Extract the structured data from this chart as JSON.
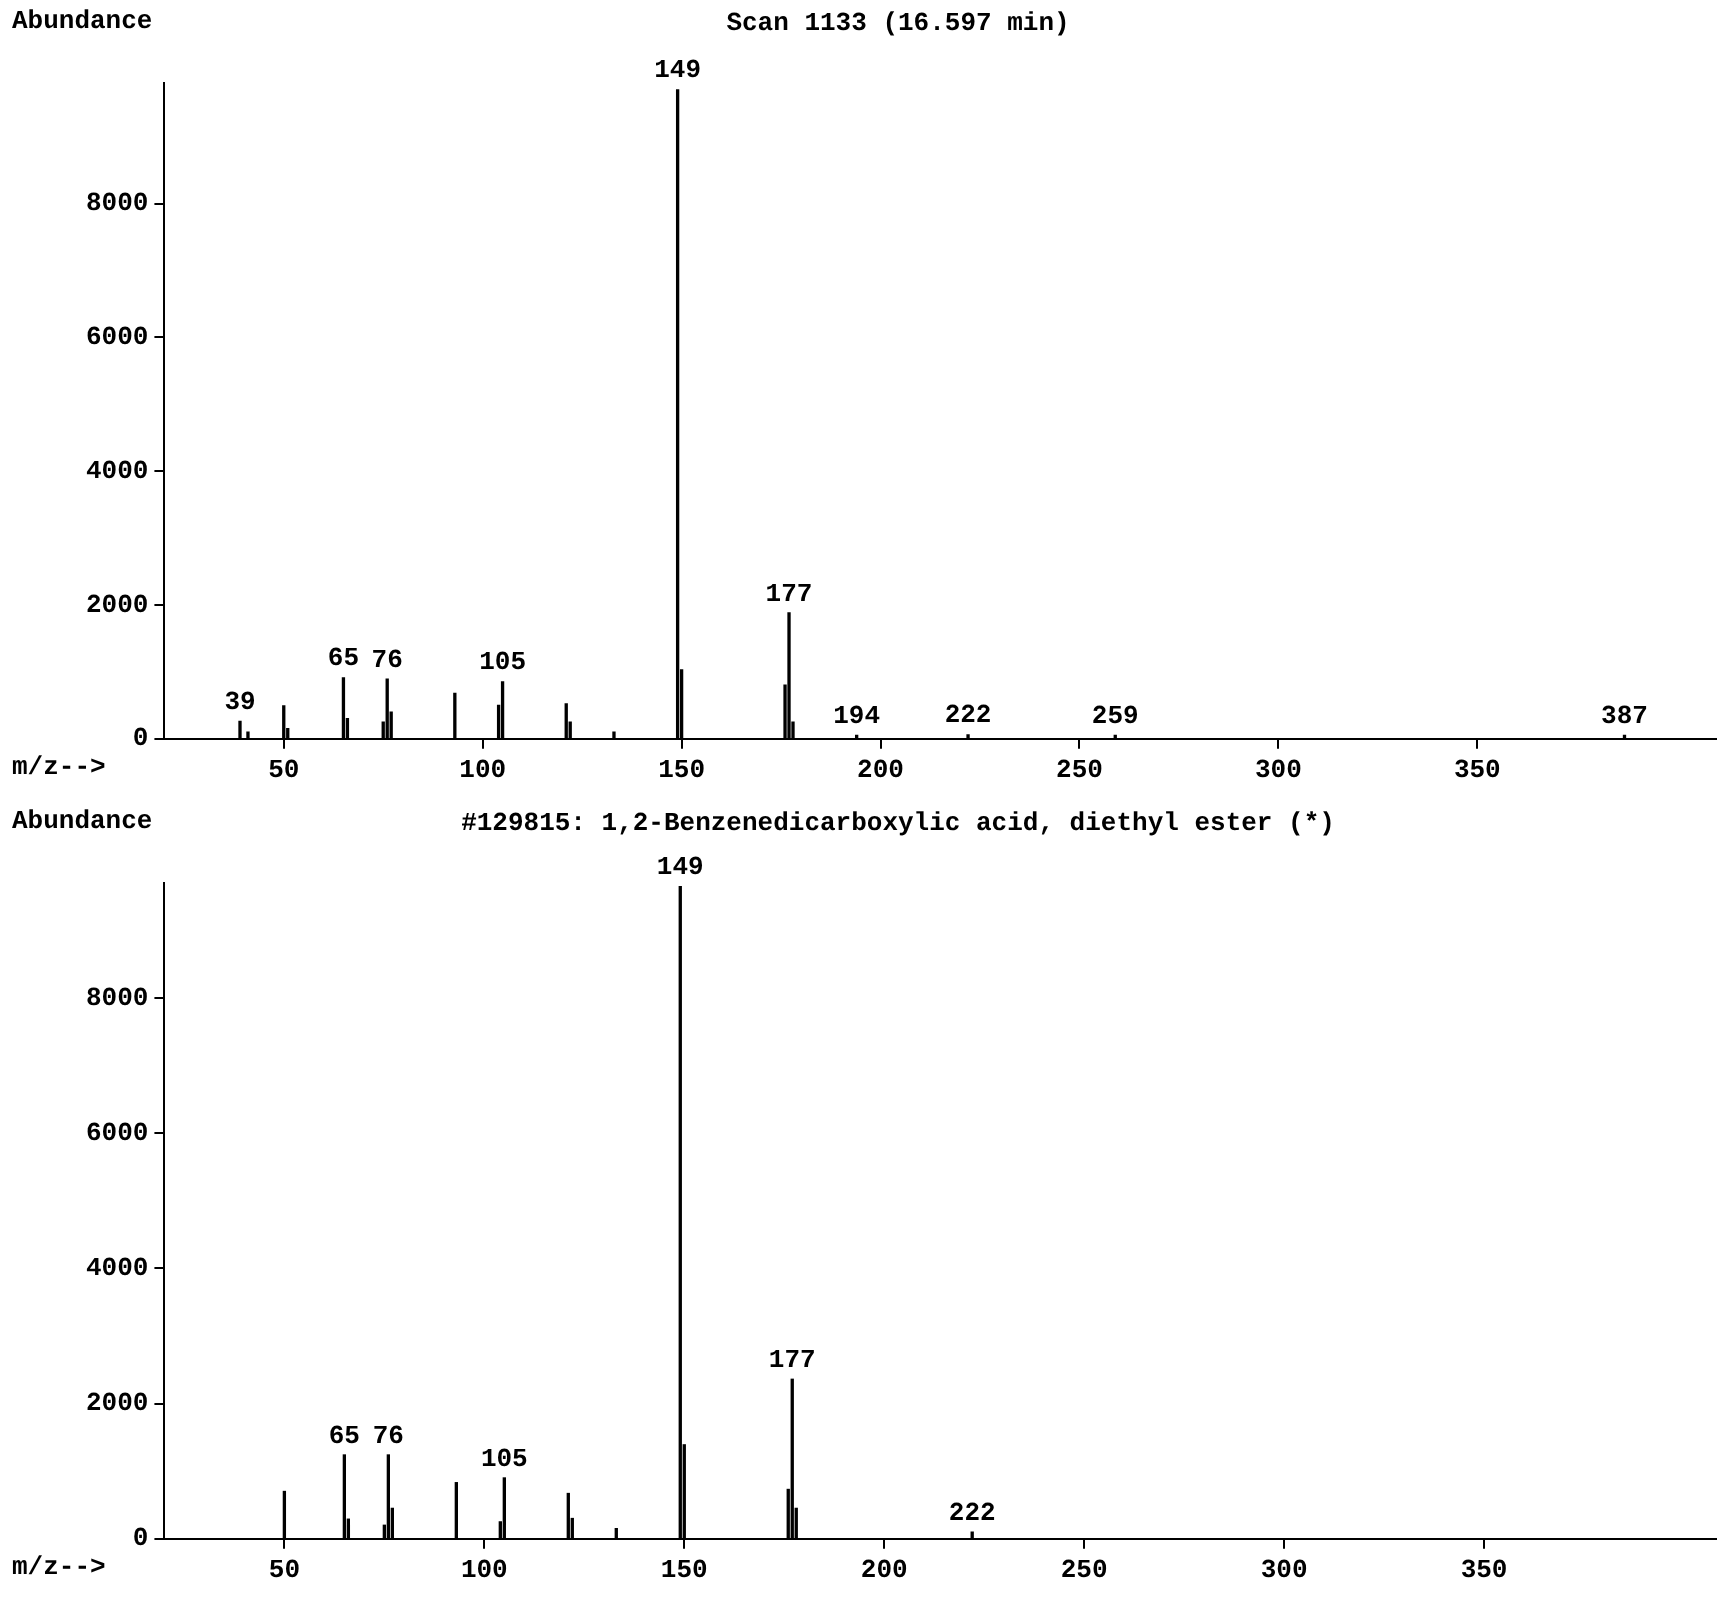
{
  "chart_data": [
    {
      "type": "bar",
      "title": "Scan 1133 (16.597 min)",
      "ylabel": "Abundance",
      "xlabel": "m/z-->",
      "x": [
        39,
        41,
        50,
        51,
        65,
        66,
        75,
        76,
        77,
        93,
        104,
        105,
        121,
        122,
        133,
        149,
        150,
        176,
        177,
        178,
        194,
        222,
        259,
        387
      ],
      "values": [
        260,
        100,
        490,
        150,
        910,
        300,
        250,
        890,
        400,
        680,
        500,
        850,
        520,
        250,
        100,
        9700,
        1030,
        800,
        1880,
        250,
        50,
        60,
        50,
        50
      ],
      "color": "#000000",
      "xlim": [
        20,
        410
      ],
      "xticks": [
        50,
        100,
        150,
        200,
        250,
        300,
        350
      ],
      "ylim": [
        0,
        9800
      ],
      "yticks": [
        0,
        2000,
        4000,
        6000,
        8000
      ],
      "grid": false,
      "legend": false,
      "annotations": [
        {
          "text": "39",
          "x": 39,
          "y": 260
        },
        {
          "text": "65",
          "x": 65,
          "y": 910
        },
        {
          "text": "76",
          "x": 76,
          "y": 890
        },
        {
          "text": "105",
          "x": 105,
          "y": 850
        },
        {
          "text": "149",
          "x": 149,
          "y": 9700
        },
        {
          "text": "177",
          "x": 177,
          "y": 1880
        },
        {
          "text": "194",
          "x": 194,
          "y": 50
        },
        {
          "text": "222",
          "x": 222,
          "y": 60
        },
        {
          "text": "259",
          "x": 259,
          "y": 50
        },
        {
          "text": "387",
          "x": 387,
          "y": 50
        }
      ]
    },
    {
      "type": "bar",
      "title": "#129815: 1,2-Benzenedicarboxylic acid, diethyl ester (*)",
      "ylabel": "Abundance",
      "xlabel": "m/z-->",
      "x": [
        50,
        65,
        66,
        75,
        76,
        77,
        93,
        104,
        105,
        121,
        122,
        133,
        149,
        150,
        176,
        177,
        178,
        222
      ],
      "values": [
        700,
        1240,
        290,
        200,
        1240,
        450,
        830,
        250,
        900,
        670,
        300,
        150,
        9650,
        1390,
        730,
        2360,
        450,
        100
      ],
      "color": "#000000",
      "xlim": [
        20,
        408
      ],
      "xticks": [
        50,
        100,
        150,
        200,
        250,
        300,
        350
      ],
      "ylim": [
        0,
        9700
      ],
      "yticks": [
        0,
        2000,
        4000,
        6000,
        8000
      ],
      "grid": false,
      "legend": false,
      "annotations": [
        {
          "text": "65",
          "x": 65,
          "y": 1240
        },
        {
          "text": "76",
          "x": 76,
          "y": 1240
        },
        {
          "text": "105",
          "x": 105,
          "y": 900
        },
        {
          "text": "149",
          "x": 149,
          "y": 9650
        },
        {
          "text": "177",
          "x": 177,
          "y": 2360
        },
        {
          "text": "222",
          "x": 222,
          "y": 100
        }
      ]
    }
  ]
}
